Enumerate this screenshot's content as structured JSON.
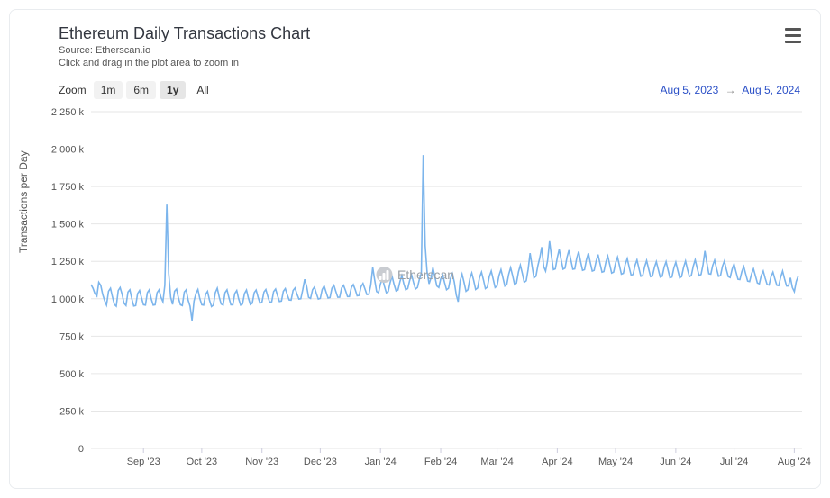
{
  "header": {
    "title": "Ethereum Daily Transactions Chart",
    "subtitle": "Source: Etherscan.io",
    "hint": "Click and drag in the plot area to zoom in"
  },
  "watermark": {
    "text": "Etherscan"
  },
  "zoom": {
    "label": "Zoom",
    "buttons": [
      {
        "label": "1m",
        "active": false,
        "dim": true
      },
      {
        "label": "6m",
        "active": false,
        "dim": true
      },
      {
        "label": "1y",
        "active": true,
        "dim": false
      },
      {
        "label": "All",
        "active": false,
        "dim": false
      }
    ]
  },
  "range": {
    "from": "Aug 5, 2023",
    "to": "Aug 5, 2024",
    "arrow": "→"
  },
  "chart": {
    "type": "line",
    "ylabel": "Transactions per Day",
    "line_color": "#7cb5ec",
    "grid_color": "#e6e6e6",
    "background_color": "#ffffff",
    "axis_text_color": "#555555",
    "y": {
      "min": 0,
      "max": 2250,
      "ticks": [
        0,
        250,
        500,
        750,
        1000,
        1250,
        1500,
        1750,
        2000,
        2250
      ],
      "tick_labels": [
        "0",
        "250 k",
        "500 k",
        "750 k",
        "1 000 k",
        "1 250 k",
        "1 500 k",
        "1 750 k",
        "2 000 k",
        "2 250 k"
      ]
    },
    "x": {
      "min": 0,
      "max": 366,
      "ticks": [
        27,
        57,
        88,
        118,
        149,
        180,
        209,
        240,
        270,
        301,
        331,
        362
      ],
      "tick_labels": [
        "Sep '23",
        "Oct '23",
        "Nov '23",
        "Dec '23",
        "Jan '24",
        "Feb '24",
        "Mar '24",
        "Apr '24",
        "May '24",
        "Jun '24",
        "Jul '24",
        "Aug '24"
      ]
    },
    "values": [
      1095,
      1070,
      1035,
      1018,
      1110,
      1090,
      1030,
      988,
      958,
      1050,
      1070,
      1015,
      962,
      950,
      1055,
      1075,
      1030,
      970,
      955,
      1045,
      1060,
      1000,
      952,
      955,
      1035,
      1055,
      1008,
      960,
      958,
      1040,
      1060,
      1000,
      958,
      960,
      1040,
      1060,
      1010,
      980,
      1090,
      1630,
      1170,
      1010,
      962,
      1050,
      1065,
      1005,
      960,
      955,
      1045,
      1060,
      990,
      950,
      855,
      985,
      1035,
      1062,
      1002,
      960,
      958,
      1030,
      1050,
      990,
      948,
      958,
      1042,
      1070,
      1010,
      965,
      958,
      1040,
      1060,
      1005,
      960,
      960,
      1035,
      1055,
      1000,
      958,
      965,
      1035,
      1058,
      1005,
      962,
      970,
      1040,
      1058,
      1010,
      970,
      978,
      1045,
      1062,
      1015,
      975,
      980,
      1048,
      1065,
      1020,
      982,
      985,
      1050,
      1068,
      1028,
      992,
      990,
      1055,
      1072,
      1032,
      998,
      1000,
      1062,
      1130,
      1082,
      1010,
      1002,
      1060,
      1078,
      1035,
      998,
      1002,
      1062,
      1085,
      1045,
      1005,
      1008,
      1070,
      1090,
      1050,
      1010,
      1010,
      1072,
      1090,
      1055,
      1015,
      1015,
      1075,
      1095,
      1060,
      1020,
      1022,
      1080,
      1102,
      1065,
      1028,
      1030,
      1090,
      1210,
      1128,
      1048,
      1040,
      1100,
      1135,
      1085,
      1040,
      1048,
      1110,
      1150,
      1095,
      1052,
      1058,
      1115,
      1155,
      1100,
      1060,
      1068,
      1120,
      1160,
      1108,
      1065,
      1075,
      1128,
      1170,
      1960,
      1355,
      1180,
      1100,
      1140,
      1208,
      1145,
      1085,
      1075,
      1132,
      1160,
      1108,
      1060,
      1070,
      1135,
      1168,
      1112,
      1025,
      980,
      1120,
      1165,
      1110,
      1050,
      1060,
      1135,
      1172,
      1120,
      1062,
      1072,
      1142,
      1178,
      1125,
      1068,
      1078,
      1148,
      1185,
      1132,
      1075,
      1085,
      1155,
      1195,
      1142,
      1085,
      1095,
      1165,
      1208,
      1155,
      1095,
      1105,
      1180,
      1225,
      1170,
      1110,
      1120,
      1195,
      1305,
      1218,
      1140,
      1150,
      1220,
      1275,
      1345,
      1215,
      1185,
      1255,
      1385,
      1285,
      1195,
      1200,
      1275,
      1330,
      1260,
      1198,
      1205,
      1278,
      1325,
      1258,
      1198,
      1200,
      1270,
      1315,
      1250,
      1190,
      1195,
      1260,
      1305,
      1242,
      1185,
      1190,
      1252,
      1295,
      1235,
      1178,
      1182,
      1245,
      1285,
      1228,
      1172,
      1178,
      1238,
      1278,
      1220,
      1165,
      1170,
      1230,
      1268,
      1212,
      1158,
      1162,
      1222,
      1260,
      1205,
      1150,
      1155,
      1215,
      1255,
      1200,
      1148,
      1152,
      1210,
      1248,
      1195,
      1145,
      1150,
      1210,
      1248,
      1192,
      1140,
      1145,
      1205,
      1245,
      1192,
      1140,
      1148,
      1210,
      1252,
      1198,
      1148,
      1155,
      1218,
      1260,
      1205,
      1155,
      1162,
      1228,
      1320,
      1238,
      1168,
      1165,
      1222,
      1258,
      1202,
      1150,
      1155,
      1215,
      1252,
      1198,
      1148,
      1142,
      1198,
      1232,
      1180,
      1130,
      1128,
      1182,
      1215,
      1165,
      1118,
      1115,
      1168,
      1200,
      1152,
      1105,
      1100,
      1155,
      1185,
      1138,
      1095,
      1092,
      1148,
      1178,
      1132,
      1090,
      1088,
      1145,
      1185,
      1132,
      1085,
      1085,
      1140,
      1075,
      1048,
      1115,
      1150
    ]
  }
}
